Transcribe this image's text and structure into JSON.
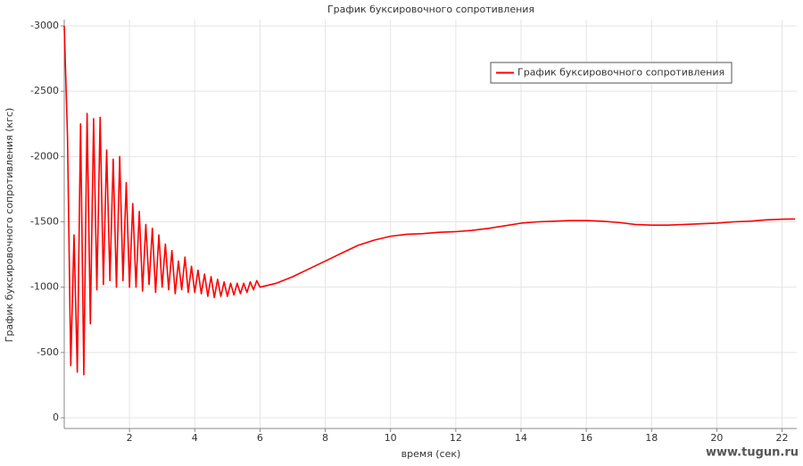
{
  "chart_data": {
    "type": "line",
    "title": "График буксировочного сопротивления",
    "x_label": "время (сек)",
    "y_label": "График буксировочного сопротивления (кгс)",
    "watermark": "www.tugun.ru",
    "x": [
      0,
      0.1,
      0.2,
      0.3,
      0.4,
      0.5,
      0.6,
      0.7,
      0.8,
      0.9,
      1.0,
      1.1,
      1.2,
      1.3,
      1.4,
      1.5,
      1.6,
      1.7,
      1.8,
      1.9,
      2.0,
      2.1,
      2.2,
      2.3,
      2.4,
      2.5,
      2.6,
      2.7,
      2.8,
      2.9,
      3.0,
      3.1,
      3.2,
      3.3,
      3.4,
      3.5,
      3.6,
      3.7,
      3.8,
      3.9,
      4.0,
      4.1,
      4.2,
      4.3,
      4.4,
      4.5,
      4.6,
      4.7,
      4.8,
      4.9,
      5.0,
      5.1,
      5.2,
      5.3,
      5.4,
      5.5,
      5.6,
      5.7,
      5.8,
      5.9,
      6.0,
      6.5,
      7,
      7.5,
      8,
      8.5,
      9,
      9.5,
      10,
      10.5,
      11,
      11.5,
      12,
      12.5,
      13,
      13.5,
      14,
      14.5,
      15,
      15.5,
      16,
      16.5,
      17,
      17.5,
      18,
      18.5,
      19,
      19.5,
      20,
      20.5,
      21,
      21.5,
      22,
      22.4
    ],
    "series": [
      {
        "name": "График буксировочного сопротивления",
        "color": "#ff0000",
        "values": [
          -3000,
          -2150,
          -400,
          -1400,
          -350,
          -2250,
          -330,
          -2330,
          -720,
          -2290,
          -980,
          -2300,
          -1020,
          -2050,
          -1050,
          -1980,
          -1000,
          -2000,
          -1050,
          -1800,
          -1000,
          -1640,
          -1000,
          -1580,
          -970,
          -1480,
          -1020,
          -1450,
          -960,
          -1400,
          -1000,
          -1330,
          -980,
          -1280,
          -950,
          -1200,
          -980,
          -1230,
          -960,
          -1160,
          -960,
          -1130,
          -950,
          -1100,
          -930,
          -1080,
          -920,
          -1060,
          -930,
          -1040,
          -930,
          -1030,
          -940,
          -1030,
          -950,
          -1030,
          -960,
          -1040,
          -980,
          -1050,
          -1000,
          -1030,
          -1080,
          -1140,
          -1200,
          -1260,
          -1320,
          -1360,
          -1390,
          -1405,
          -1410,
          -1420,
          -1425,
          -1435,
          -1450,
          -1470,
          -1490,
          -1500,
          -1505,
          -1510,
          -1510,
          -1505,
          -1495,
          -1480,
          -1475,
          -1475,
          -1480,
          -1485,
          -1490,
          -1500,
          -1505,
          -1515,
          -1520,
          -1522
        ]
      }
    ],
    "xlim": [
      0,
      22.45
    ],
    "xticks": [
      2,
      4,
      6,
      8,
      10,
      12,
      14,
      16,
      18,
      20,
      22
    ],
    "ylim": [
      82,
      -3048
    ],
    "yticks": [
      0,
      -500,
      -1000,
      -1500,
      -2000,
      -2500,
      -3000
    ],
    "grid": true,
    "legend": "upper right"
  }
}
